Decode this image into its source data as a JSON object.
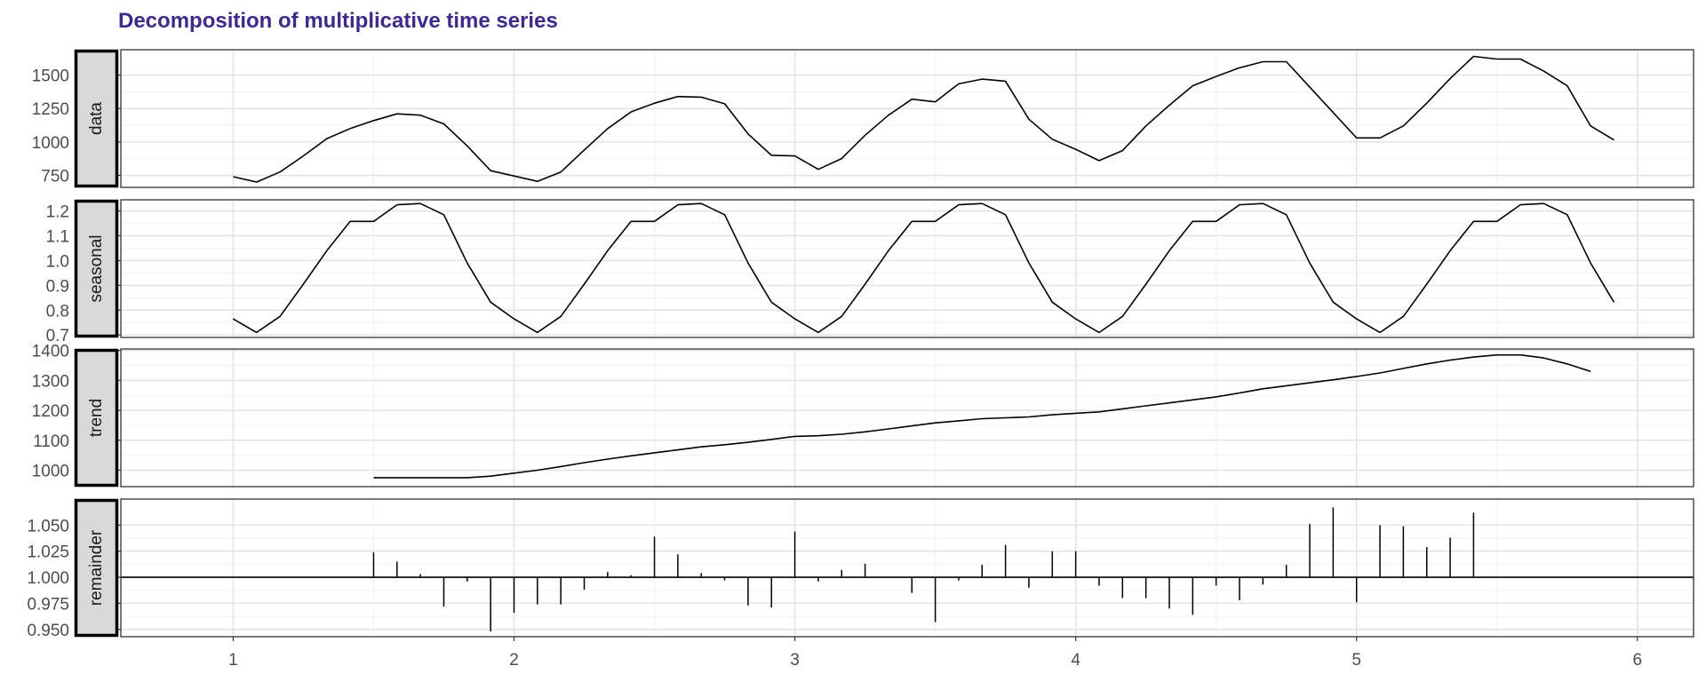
{
  "chart_data": {
    "type": "line",
    "title": "Decomposition of multiplicative time series",
    "x_ticks": [
      1,
      2,
      3,
      4,
      5,
      6
    ],
    "x_range": [
      0.6,
      6.2
    ],
    "grid": true,
    "panels": [
      {
        "key": "data",
        "label": "data",
        "kind": "line",
        "ylim": [
          660,
          1690
        ],
        "y_ticks": [
          750,
          1000,
          1250,
          1500
        ],
        "x_start": 1.0,
        "x_step": 0.08333333,
        "values": [
          740,
          700,
          775,
          895,
          1025,
          1100,
          1160,
          1210,
          1200,
          1135,
          970,
          785,
          745,
          705,
          775,
          940,
          1100,
          1225,
          1290,
          1340,
          1335,
          1285,
          1060,
          900,
          895,
          795,
          875,
          1050,
          1200,
          1320,
          1300,
          1435,
          1470,
          1455,
          1170,
          1020,
          945,
          860,
          935,
          1120,
          1275,
          1420,
          1490,
          1555,
          1600,
          1600,
          1410,
          1220,
          1030,
          1030,
          1120,
          1290,
          1475,
          1640,
          1620,
          1620,
          1530,
          1420,
          1120,
          1015
        ]
      },
      {
        "key": "seasonal",
        "label": "seasonal",
        "kind": "line",
        "ylim": [
          0.69,
          1.245
        ],
        "y_ticks": [
          0.7,
          0.8,
          0.9,
          1.0,
          1.1,
          1.2
        ],
        "x_start": 1.0,
        "x_step": 0.08333333,
        "values": [
          0.765,
          0.71,
          0.775,
          0.905,
          1.04,
          1.158,
          1.158,
          1.225,
          1.23,
          1.185,
          0.99,
          0.832,
          0.765,
          0.71,
          0.775,
          0.905,
          1.04,
          1.158,
          1.158,
          1.225,
          1.23,
          1.185,
          0.99,
          0.832,
          0.765,
          0.71,
          0.775,
          0.905,
          1.04,
          1.158,
          1.158,
          1.225,
          1.23,
          1.185,
          0.99,
          0.832,
          0.765,
          0.71,
          0.775,
          0.905,
          1.04,
          1.158,
          1.158,
          1.225,
          1.23,
          1.185,
          0.99,
          0.832,
          0.765,
          0.71,
          0.775,
          0.905,
          1.04,
          1.158,
          1.158,
          1.225,
          1.23,
          1.185,
          0.99,
          0.832
        ]
      },
      {
        "key": "trend",
        "label": "trend",
        "kind": "line",
        "ylim": [
          945,
          1405
        ],
        "y_ticks": [
          1000,
          1100,
          1200,
          1300,
          1400
        ],
        "x_start": 1.5,
        "x_step": 0.08333333,
        "values": [
          975,
          975,
          975,
          975,
          975,
          980,
          990,
          1000,
          1012,
          1025,
          1037,
          1048,
          1058,
          1068,
          1078,
          1085,
          1093,
          1103,
          1113,
          1115,
          1120,
          1128,
          1138,
          1148,
          1158,
          1165,
          1172,
          1175,
          1178,
          1185,
          1190,
          1195,
          1205,
          1215,
          1225,
          1235,
          1245,
          1258,
          1272,
          1282,
          1292,
          1302,
          1313,
          1325,
          1340,
          1355,
          1368,
          1378,
          1385,
          1385,
          1375,
          1355,
          1330
        ]
      },
      {
        "key": "remainder",
        "label": "remainder",
        "kind": "bar",
        "baseline": 1.0,
        "ylim": [
          0.943,
          1.075
        ],
        "y_ticks": [
          0.95,
          0.975,
          1.0,
          1.025,
          1.05
        ],
        "x_start": 1.5,
        "x_step": 0.08333333,
        "values": [
          1.024,
          1.015,
          1.003,
          0.972,
          0.996,
          0.948,
          0.966,
          0.974,
          0.974,
          0.988,
          1.005,
          1.002,
          1.039,
          1.022,
          1.004,
          0.997,
          0.973,
          0.971,
          1.044,
          0.996,
          1.007,
          1.013,
          1.0,
          0.985,
          0.957,
          0.997,
          1.012,
          1.031,
          0.99,
          1.025,
          1.025,
          0.992,
          0.98,
          0.98,
          0.97,
          0.964,
          0.992,
          0.978,
          0.993,
          1.012,
          1.051,
          1.067,
          0.976,
          1.05,
          1.049,
          1.029,
          1.038,
          1.062
        ]
      }
    ]
  }
}
